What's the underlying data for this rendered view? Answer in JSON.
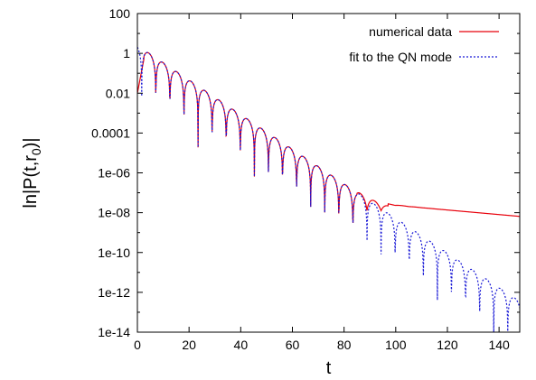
{
  "chart_data": {
    "type": "line",
    "xlabel": "t",
    "ylabel_main": "ln|P(t,r",
    "ylabel_sub": "0",
    "ylabel_end": ")|",
    "xlim": [
      0,
      148
    ],
    "ylim": [
      1e-14,
      100
    ],
    "yscale": "log",
    "grid": false,
    "legend_position": "top-right",
    "x_ticks": [
      {
        "value": 0,
        "label": "0"
      },
      {
        "value": 20,
        "label": "20"
      },
      {
        "value": 40,
        "label": "40"
      },
      {
        "value": 60,
        "label": "60"
      },
      {
        "value": 80,
        "label": "80"
      },
      {
        "value": 100,
        "label": "100"
      },
      {
        "value": 120,
        "label": "120"
      },
      {
        "value": 140,
        "label": "140"
      }
    ],
    "y_ticks": [
      {
        "value": 100,
        "label": "100"
      },
      {
        "value": 1,
        "label": "1"
      },
      {
        "value": 0.01,
        "label": "0.01"
      },
      {
        "value": 0.0001,
        "label": "0.0001"
      },
      {
        "value": 1e-06,
        "label": "1e-06"
      },
      {
        "value": 1e-08,
        "label": "1e-08"
      },
      {
        "value": 1e-10,
        "label": "1e-10"
      },
      {
        "value": 1e-12,
        "label": "1e-12"
      },
      {
        "value": 1e-14,
        "label": "1e-14"
      }
    ],
    "series": [
      {
        "name": "numerical data",
        "color": "#e8000b",
        "style": "solid",
        "model": {
          "amplitude": 2.5,
          "decay_per_unit_t": 0.2,
          "period": 10.9,
          "phase": 0.6,
          "onset_t": 2.5,
          "tail_start_t": 97,
          "tail_value_at_start": 2.5e-08,
          "tail_value_at_end": 6.5e-09
        }
      },
      {
        "name": "fit to the QN mode",
        "color": "#1a1ad6",
        "style": "dotted",
        "model": {
          "amplitude": 2.5,
          "decay_per_unit_t": 0.2,
          "period": 10.9,
          "phase": 0.6,
          "onset_t": 0
        }
      }
    ]
  }
}
